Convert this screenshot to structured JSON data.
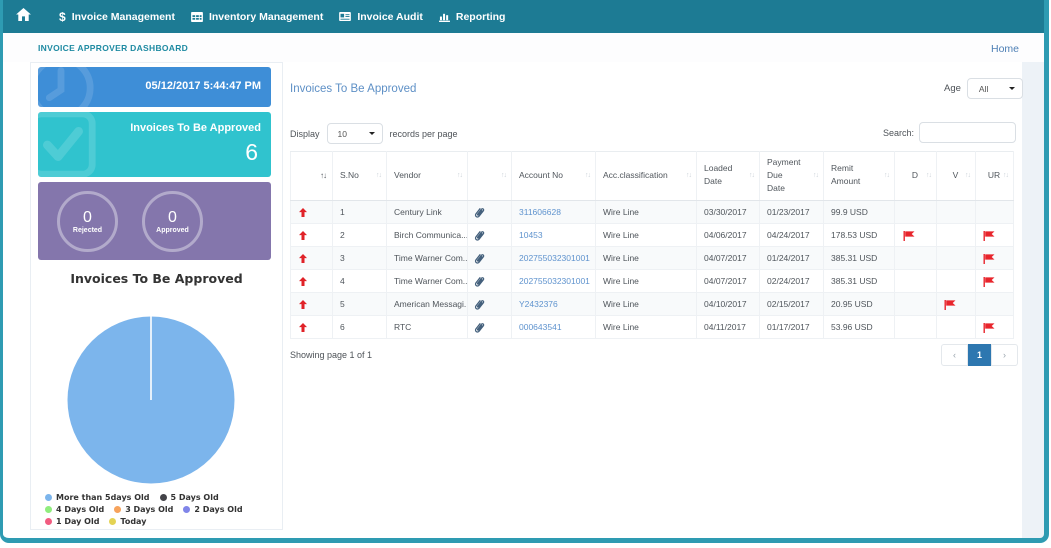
{
  "navbar": {
    "items": [
      {
        "icon": "dollar-icon",
        "label": "Invoice Management"
      },
      {
        "icon": "table-icon",
        "label": "Inventory Management"
      },
      {
        "icon": "card-icon",
        "label": "Invoice Audit"
      },
      {
        "icon": "bar-chart-icon",
        "label": "Reporting"
      }
    ]
  },
  "breadcrumb": {
    "title": "INVOICE APPROVER DASHBOARD",
    "home_link": "Home"
  },
  "sidebar": {
    "datetime": "05/12/2017 5:44:47 PM",
    "pending_label": "Invoices To Be Approved",
    "pending_count": "6",
    "stats": [
      {
        "value": "0",
        "label": "Rejected"
      },
      {
        "value": "0",
        "label": "Approved"
      }
    ]
  },
  "chart_data": {
    "type": "pie",
    "title": "Invoices To Be Approved",
    "series": [
      {
        "name": "More than 5days Old",
        "value": 6,
        "color": "#7cb5ec"
      },
      {
        "name": "5 Days Old",
        "value": 0,
        "color": "#434348"
      },
      {
        "name": "4 Days Old",
        "value": 0,
        "color": "#90ed7d"
      },
      {
        "name": "3 Days Old",
        "value": 0,
        "color": "#f7a35c"
      },
      {
        "name": "2 Days Old",
        "value": 0,
        "color": "#8085e9"
      },
      {
        "name": "1 Day Old",
        "value": 0,
        "color": "#f15c80"
      },
      {
        "name": "Today",
        "value": 0,
        "color": "#e4d354"
      }
    ],
    "legend_position": "bottom",
    "legend_rows": [
      [
        0,
        1
      ],
      [
        2,
        3,
        4
      ],
      [
        5,
        6
      ]
    ]
  },
  "main": {
    "title": "Invoices To Be Approved",
    "age_label": "Age",
    "age_value": "All",
    "display_prefix": "Display",
    "display_value": "10",
    "display_suffix": "records per page",
    "search_label": "Search:",
    "table": {
      "columns": [
        "",
        "S.No",
        "Vendor",
        "",
        "Account No",
        "Acc.classification",
        "Loaded Date",
        "Payment Due Date",
        "Remit Amount",
        "D",
        "V",
        "UR"
      ],
      "rows": [
        {
          "sno": "1",
          "vendor": "Century Link",
          "account_no": "311606628",
          "classification": "Wire Line",
          "loaded_date": "03/30/2017",
          "due_date": "01/23/2017",
          "amount": "99.9 USD",
          "d_flag": false,
          "v_flag": false,
          "ur_flag": false
        },
        {
          "sno": "2",
          "vendor": "Birch Communica...",
          "account_no": "10453",
          "classification": "Wire Line",
          "loaded_date": "04/06/2017",
          "due_date": "04/24/2017",
          "amount": "178.53 USD",
          "d_flag": true,
          "v_flag": false,
          "ur_flag": true
        },
        {
          "sno": "3",
          "vendor": "Time Warner Com...",
          "account_no": "202755032301001",
          "classification": "Wire Line",
          "loaded_date": "04/07/2017",
          "due_date": "01/24/2017",
          "amount": "385.31 USD",
          "d_flag": false,
          "v_flag": false,
          "ur_flag": true
        },
        {
          "sno": "4",
          "vendor": "Time Warner Com...",
          "account_no": "202755032301001",
          "classification": "Wire Line",
          "loaded_date": "04/07/2017",
          "due_date": "02/24/2017",
          "amount": "385.31 USD",
          "d_flag": false,
          "v_flag": false,
          "ur_flag": true
        },
        {
          "sno": "5",
          "vendor": "American Messagi...",
          "account_no": "Y2432376",
          "classification": "Wire Line",
          "loaded_date": "04/10/2017",
          "due_date": "02/15/2017",
          "amount": "20.95 USD",
          "d_flag": false,
          "v_flag": true,
          "ur_flag": false
        },
        {
          "sno": "6",
          "vendor": "RTC",
          "account_no": "000643541",
          "classification": "Wire Line",
          "loaded_date": "04/11/2017",
          "due_date": "01/17/2017",
          "amount": "53.96 USD",
          "d_flag": false,
          "v_flag": false,
          "ur_flag": true
        }
      ]
    },
    "footer": {
      "summary": "Showing page 1 of 1",
      "pager_prev": "‹",
      "pager_page": "1",
      "pager_next": "›"
    }
  },
  "colors": {
    "navbar_bg": "#1d7b94",
    "frame_border": "#2e9bb2",
    "breadcrumb_title": "#1e8aa2",
    "datetime_card": "#3e8ed7",
    "pending_card": "#30c3ce",
    "stats_card": "#8476ac",
    "main_title": "#5e90c6",
    "link": "#5f93ce",
    "flag_red": "#e8242b",
    "pager_active": "#2d77b0"
  }
}
